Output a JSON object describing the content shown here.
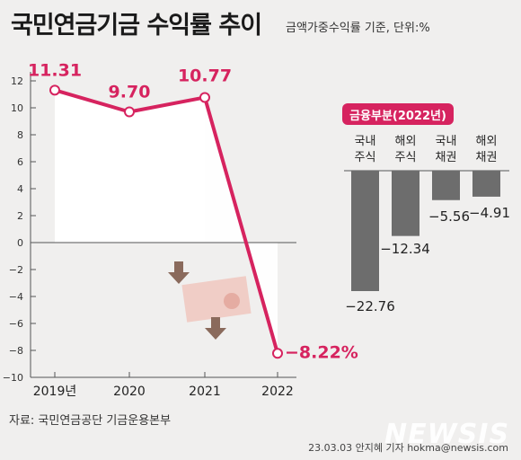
{
  "title": "국민연금기금 수익률 추이",
  "subtitle": "금액가중수익률 기준, 단위:%",
  "source": "자료: 국민연금공단 기금운용본부",
  "credit": "23.03.03 안지혜 기자 hokma@newsis.com",
  "watermark": "NEWSIS",
  "colors": {
    "line": "#d6235f",
    "fill": "#ffffff",
    "bar": "#6d6d6d",
    "background": "#f0efee",
    "badge": "#d6235f"
  },
  "chart_data": [
    {
      "type": "line",
      "categories": [
        "2019년",
        "2020",
        "2021",
        "2022"
      ],
      "values": [
        11.31,
        9.7,
        10.77,
        -8.22
      ],
      "value_labels": [
        "11.31",
        "9.70",
        "10.77",
        "-8.22%"
      ],
      "ylim": [
        -10,
        12
      ],
      "yticks": [
        12,
        10,
        8,
        6,
        4,
        2,
        0,
        -2,
        -4,
        -6,
        -8,
        -10
      ],
      "grid": false,
      "decoration": "down-arrow-icons"
    },
    {
      "type": "bar",
      "title": "금융부분(2022년)",
      "categories": [
        [
          "국내",
          "주식"
        ],
        [
          "해외",
          "주식"
        ],
        [
          "국내",
          "채권"
        ],
        [
          "해외",
          "채권"
        ]
      ],
      "values": [
        -22.76,
        -12.34,
        -5.56,
        -4.91
      ],
      "value_labels": [
        "-22.76",
        "-12.34",
        "-5.56",
        "-4.91"
      ]
    }
  ]
}
